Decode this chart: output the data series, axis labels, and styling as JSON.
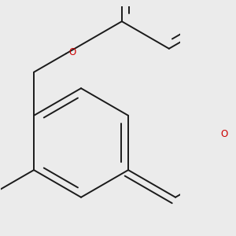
{
  "bg": "#ebebeb",
  "bc": "#1a1a1a",
  "oc": "#cc0000",
  "hc": "#2d7070",
  "lw": 1.4,
  "dbo": 0.055,
  "fs": 8.5,
  "figsize": [
    3.0,
    3.0
  ],
  "dpi": 100,
  "shrink": 0.14,
  "r": 0.44
}
